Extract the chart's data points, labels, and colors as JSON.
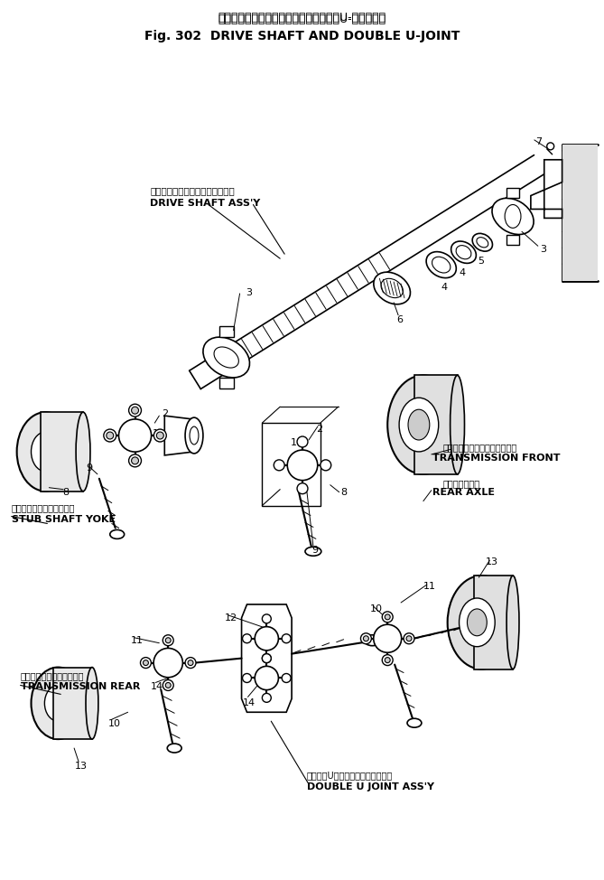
{
  "title_japanese": "ドライブ　シャフト　および　ダブル　U-ジョイント",
  "title_english": "Fig. 302  DRIVE SHAFT AND DOUBLE U-JOINT",
  "bg": "#ffffff",
  "lc": "#000000",
  "figw": 6.69,
  "figh": 9.74,
  "dpi": 100,
  "labels": {
    "drive_shaft_assy_jp": "ドライブ　シャフト　アセンブリ",
    "drive_shaft_assy_en": "DRIVE SHAFT ASS'Y",
    "stub_shaft_yoke_jp": "スタブ　シャフト　ヨーク",
    "stub_shaft_yoke_en": "STUB SHAFT YOKE",
    "transmission_front_jp": "トランスミッション　フロント",
    "transmission_front_en": "TRANSMISSION FRONT",
    "rear_axle_jp": "リヤ　アクスル",
    "rear_axle_en": "REAR AXLE",
    "transmission_rear_jp": "トランスミッション　リヤ",
    "transmission_rear_en": "TRANSMISSION REAR",
    "double_u_joint_assy_jp": "ダブル　U　ジョイントアセンブリ",
    "double_u_joint_assy_en": "DOUBLE U JOINT ASS'Y"
  }
}
